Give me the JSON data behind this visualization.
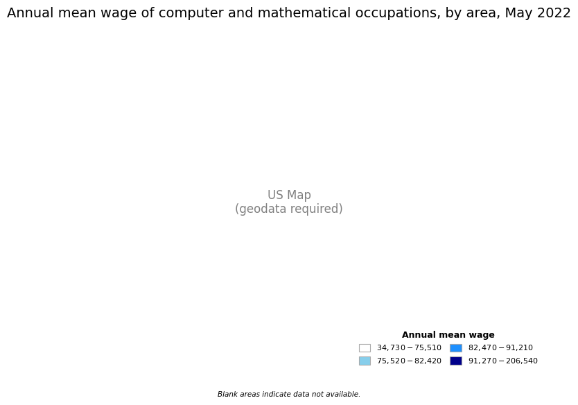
{
  "title": "Annual mean wage of computer and mathematical occupations, by area, May 2022",
  "legend_title": "Annual mean wage",
  "legend_items": [
    {
      "label": "$34,730 - $75,510",
      "color": "#ffffff",
      "edgecolor": "#aaaaaa"
    },
    {
      "label": "$75,520 - $82,420",
      "color": "#87ceeb",
      "edgecolor": "#aaaaaa"
    },
    {
      "label": "$82,470 - $91,210",
      "color": "#1e90ff",
      "edgecolor": "#aaaaaa"
    },
    {
      "label": "$91,270 - $206,540",
      "color": "#00008b",
      "edgecolor": "#aaaaaa"
    }
  ],
  "blank_note": "Blank areas indicate data not available.",
  "background_color": "#ffffff",
  "title_fontsize": 14,
  "map_edgecolor": "#888888",
  "map_linewidth": 0.3
}
